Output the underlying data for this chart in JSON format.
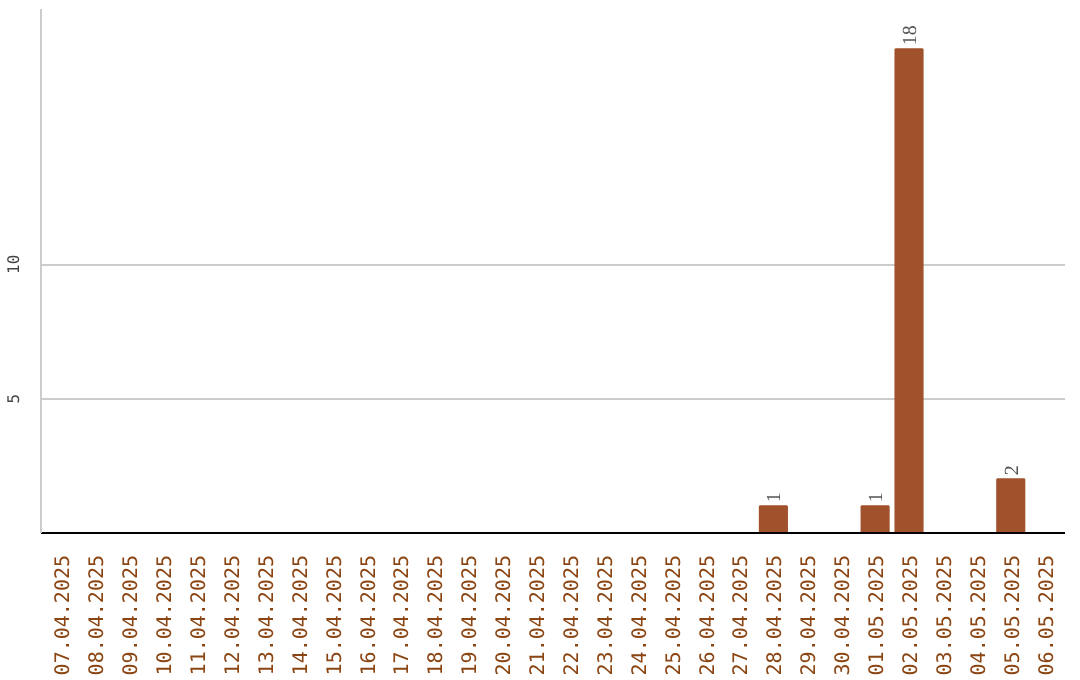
{
  "chart_data": {
    "type": "bar",
    "categories": [
      "07.04.2025",
      "08.04.2025",
      "09.04.2025",
      "10.04.2025",
      "11.04.2025",
      "12.04.2025",
      "13.04.2025",
      "14.04.2025",
      "15.04.2025",
      "16.04.2025",
      "17.04.2025",
      "18.04.2025",
      "19.04.2025",
      "20.04.2025",
      "21.04.2025",
      "22.04.2025",
      "23.04.2025",
      "24.04.2025",
      "25.04.2025",
      "26.04.2025",
      "27.04.2025",
      "28.04.2025",
      "29.04.2025",
      "30.04.2025",
      "01.05.2025",
      "02.05.2025",
      "03.05.2025",
      "04.05.2025",
      "05.05.2025",
      "06.05.2025"
    ],
    "values": [
      0,
      0,
      0,
      0,
      0,
      0,
      0,
      0,
      0,
      0,
      0,
      0,
      0,
      0,
      0,
      0,
      0,
      0,
      0,
      0,
      0,
      1,
      0,
      0,
      1,
      18,
      0,
      0,
      2,
      0
    ],
    "value_labels": [
      null,
      null,
      null,
      null,
      null,
      null,
      null,
      null,
      null,
      null,
      null,
      null,
      null,
      null,
      null,
      null,
      null,
      null,
      null,
      null,
      null,
      "1",
      null,
      null,
      "1",
      "18",
      null,
      null,
      "2",
      null
    ],
    "color": "#a0522d",
    "ylim": [
      0,
      19.5
    ],
    "yticks": [
      5,
      10
    ],
    "grid": "y"
  }
}
